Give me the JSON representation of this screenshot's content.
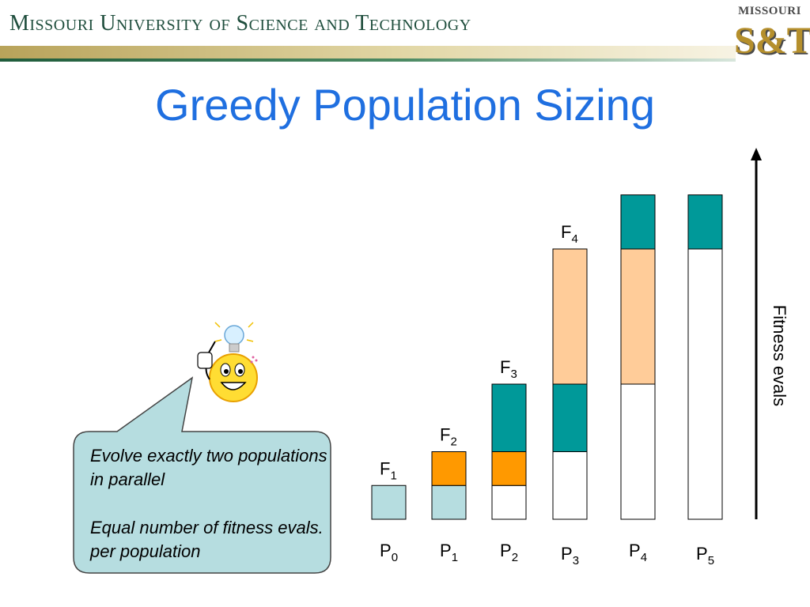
{
  "header": {
    "university_name": "Missouri University of Science and Technology",
    "logo_top": "MISSOURI",
    "logo_main": "S&T"
  },
  "slide": {
    "title": "Greedy Population Sizing"
  },
  "callout": {
    "line1": "Evolve exactly two populations in parallel",
    "line2": "Equal number of fitness evals. per population",
    "icon": "lightbulb-smiley-icon"
  },
  "axis": {
    "label": "Fitness evals"
  },
  "colors": {
    "light_blue": "#b6dde0",
    "orange": "#ff9900",
    "teal": "#009999",
    "peach": "#ffcc99",
    "white": "#ffffff",
    "title_blue": "#1f6fe0"
  },
  "chart_data": {
    "type": "stacked-bar",
    "unit_note": "Fitness evaluations per population; segments stacked bottom-to-top",
    "populations": [
      {
        "name": "P",
        "sub": "0",
        "segments": [
          {
            "color": "light_blue",
            "value": 1
          }
        ]
      },
      {
        "name": "P",
        "sub": "1",
        "segments": [
          {
            "color": "light_blue",
            "value": 1
          },
          {
            "color": "orange",
            "value": 1
          }
        ]
      },
      {
        "name": "P",
        "sub": "2",
        "segments": [
          {
            "color": "white",
            "value": 1
          },
          {
            "color": "orange",
            "value": 1
          },
          {
            "color": "teal",
            "value": 2
          }
        ]
      },
      {
        "name": "P",
        "sub": "3",
        "segments": [
          {
            "color": "white",
            "value": 2
          },
          {
            "color": "teal",
            "value": 2
          },
          {
            "color": "peach",
            "value": 4
          }
        ]
      },
      {
        "name": "P",
        "sub": "4",
        "segments": [
          {
            "color": "white",
            "value": 4
          },
          {
            "color": "peach",
            "value": 4
          },
          {
            "color": "teal",
            "value": 1.6
          }
        ]
      },
      {
        "name": "P",
        "sub": "5",
        "segments": [
          {
            "color": "white",
            "value": 8
          },
          {
            "color": "teal",
            "value": 1.6
          }
        ]
      }
    ],
    "milestones": [
      {
        "name": "F",
        "sub": "1",
        "population_index": 0,
        "level": 1
      },
      {
        "name": "F",
        "sub": "2",
        "population_index": 1,
        "level": 2
      },
      {
        "name": "F",
        "sub": "3",
        "population_index": 2,
        "level": 4
      },
      {
        "name": "F",
        "sub": "4",
        "population_index": 3,
        "level": 8
      }
    ],
    "ylabel": "Fitness evals"
  }
}
